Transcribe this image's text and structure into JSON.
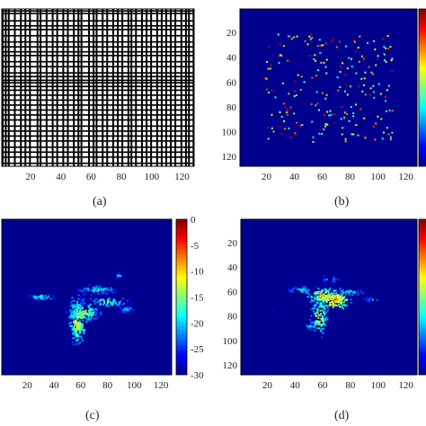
{
  "figure": {
    "panel_labels": [
      "(a)",
      "(b)",
      "(c)",
      "(d)"
    ]
  },
  "chart_data": [
    {
      "type": "heatmap",
      "panel": "(a)",
      "description_free": true,
      "xlim": [
        1,
        128
      ],
      "ylim": [
        1,
        128
      ],
      "x_ticks": [
        20,
        40,
        60,
        80,
        100,
        120
      ],
      "y_ticks": [],
      "pattern": "binary-grid",
      "column_stripes": [
        1,
        3,
        5,
        9,
        13,
        16,
        19,
        24,
        26,
        30,
        34,
        37,
        41,
        44,
        48,
        51,
        53,
        58,
        61,
        63,
        67,
        70,
        74,
        77,
        80,
        84,
        86,
        89,
        93,
        96,
        99,
        103,
        106,
        109,
        112,
        115,
        119,
        122,
        124,
        127
      ],
      "row_stripes": [
        2,
        4,
        10,
        14,
        17,
        22,
        27,
        31,
        35,
        38,
        43,
        47,
        52,
        55,
        58,
        60,
        63,
        66,
        70,
        74,
        78,
        82,
        86,
        90,
        95,
        99,
        103,
        107,
        112,
        116,
        120,
        125
      ],
      "colors": {
        "on": "#000000",
        "off": "#ffffff"
      }
    },
    {
      "type": "heatmap",
      "panel": "(b)",
      "xlim": [
        1,
        128
      ],
      "ylim": [
        1,
        128
      ],
      "x_ticks": [
        20,
        40,
        60,
        80,
        100,
        120
      ],
      "y_ticks": [
        20,
        40,
        60,
        80,
        100,
        120
      ],
      "colormap": "jet",
      "colorbar": true,
      "points_seed": 7,
      "points_count": 220,
      "points_region": {
        "x": [
          18,
          110
        ],
        "y": [
          20,
          108
        ]
      }
    },
    {
      "type": "heatmap",
      "panel": "(c)",
      "xlim": [
        1,
        128
      ],
      "ylim": [
        1,
        128
      ],
      "x_ticks": [
        20,
        40,
        60,
        80,
        100,
        120
      ],
      "y_ticks": [],
      "colormap": "jet",
      "clim": [
        -30,
        0
      ],
      "colorbar_ticks": [
        0,
        -5,
        -10,
        -15,
        -20,
        -25,
        -30
      ],
      "clusters": [
        {
          "x": 57,
          "y": 83,
          "sx": 3,
          "sy": 9,
          "n": 220,
          "peak": -8
        },
        {
          "x": 30,
          "y": 64,
          "sx": 6,
          "sy": 1.6,
          "n": 60,
          "peak": -14
        },
        {
          "x": 72,
          "y": 58,
          "sx": 10,
          "sy": 2.5,
          "n": 110,
          "peak": -15
        },
        {
          "x": 80,
          "y": 68,
          "sx": 9,
          "sy": 2.5,
          "n": 90,
          "peak": -13
        },
        {
          "x": 94,
          "y": 74,
          "sx": 4,
          "sy": 2,
          "n": 50,
          "peak": -16
        },
        {
          "x": 88,
          "y": 46,
          "sx": 2,
          "sy": 2,
          "n": 18,
          "peak": -16
        },
        {
          "x": 62,
          "y": 76,
          "sx": 6,
          "sy": 4,
          "n": 120,
          "peak": -10
        }
      ]
    },
    {
      "type": "heatmap",
      "panel": "(d)",
      "xlim": [
        1,
        128
      ],
      "ylim": [
        1,
        128
      ],
      "x_ticks": [
        20,
        40,
        60,
        80,
        100,
        120
      ],
      "y_ticks": [
        20,
        40,
        60,
        80,
        100,
        120
      ],
      "colormap": "jet",
      "colorbar": true,
      "clusters": [
        {
          "x": 60,
          "y": 63,
          "sx": 5,
          "sy": 3,
          "n": 140,
          "peak": -6
        },
        {
          "x": 68,
          "y": 66,
          "sx": 5,
          "sy": 4,
          "n": 130,
          "peak": -5
        },
        {
          "x": 57,
          "y": 80,
          "sx": 3,
          "sy": 8,
          "n": 110,
          "peak": -9
        },
        {
          "x": 44,
          "y": 58,
          "sx": 6,
          "sy": 2,
          "n": 60,
          "peak": -15
        },
        {
          "x": 78,
          "y": 60,
          "sx": 8,
          "sy": 2,
          "n": 60,
          "peak": -15
        },
        {
          "x": 95,
          "y": 66,
          "sx": 5,
          "sy": 1.5,
          "n": 28,
          "peak": -18
        },
        {
          "x": 22,
          "y": 76,
          "sx": 2,
          "sy": 1,
          "n": 10,
          "peak": -20
        },
        {
          "x": 64,
          "y": 50,
          "sx": 6,
          "sy": 3,
          "n": 30,
          "peak": -18
        },
        {
          "x": 50,
          "y": 88,
          "sx": 3,
          "sy": 2,
          "n": 30,
          "peak": -17
        }
      ]
    }
  ]
}
